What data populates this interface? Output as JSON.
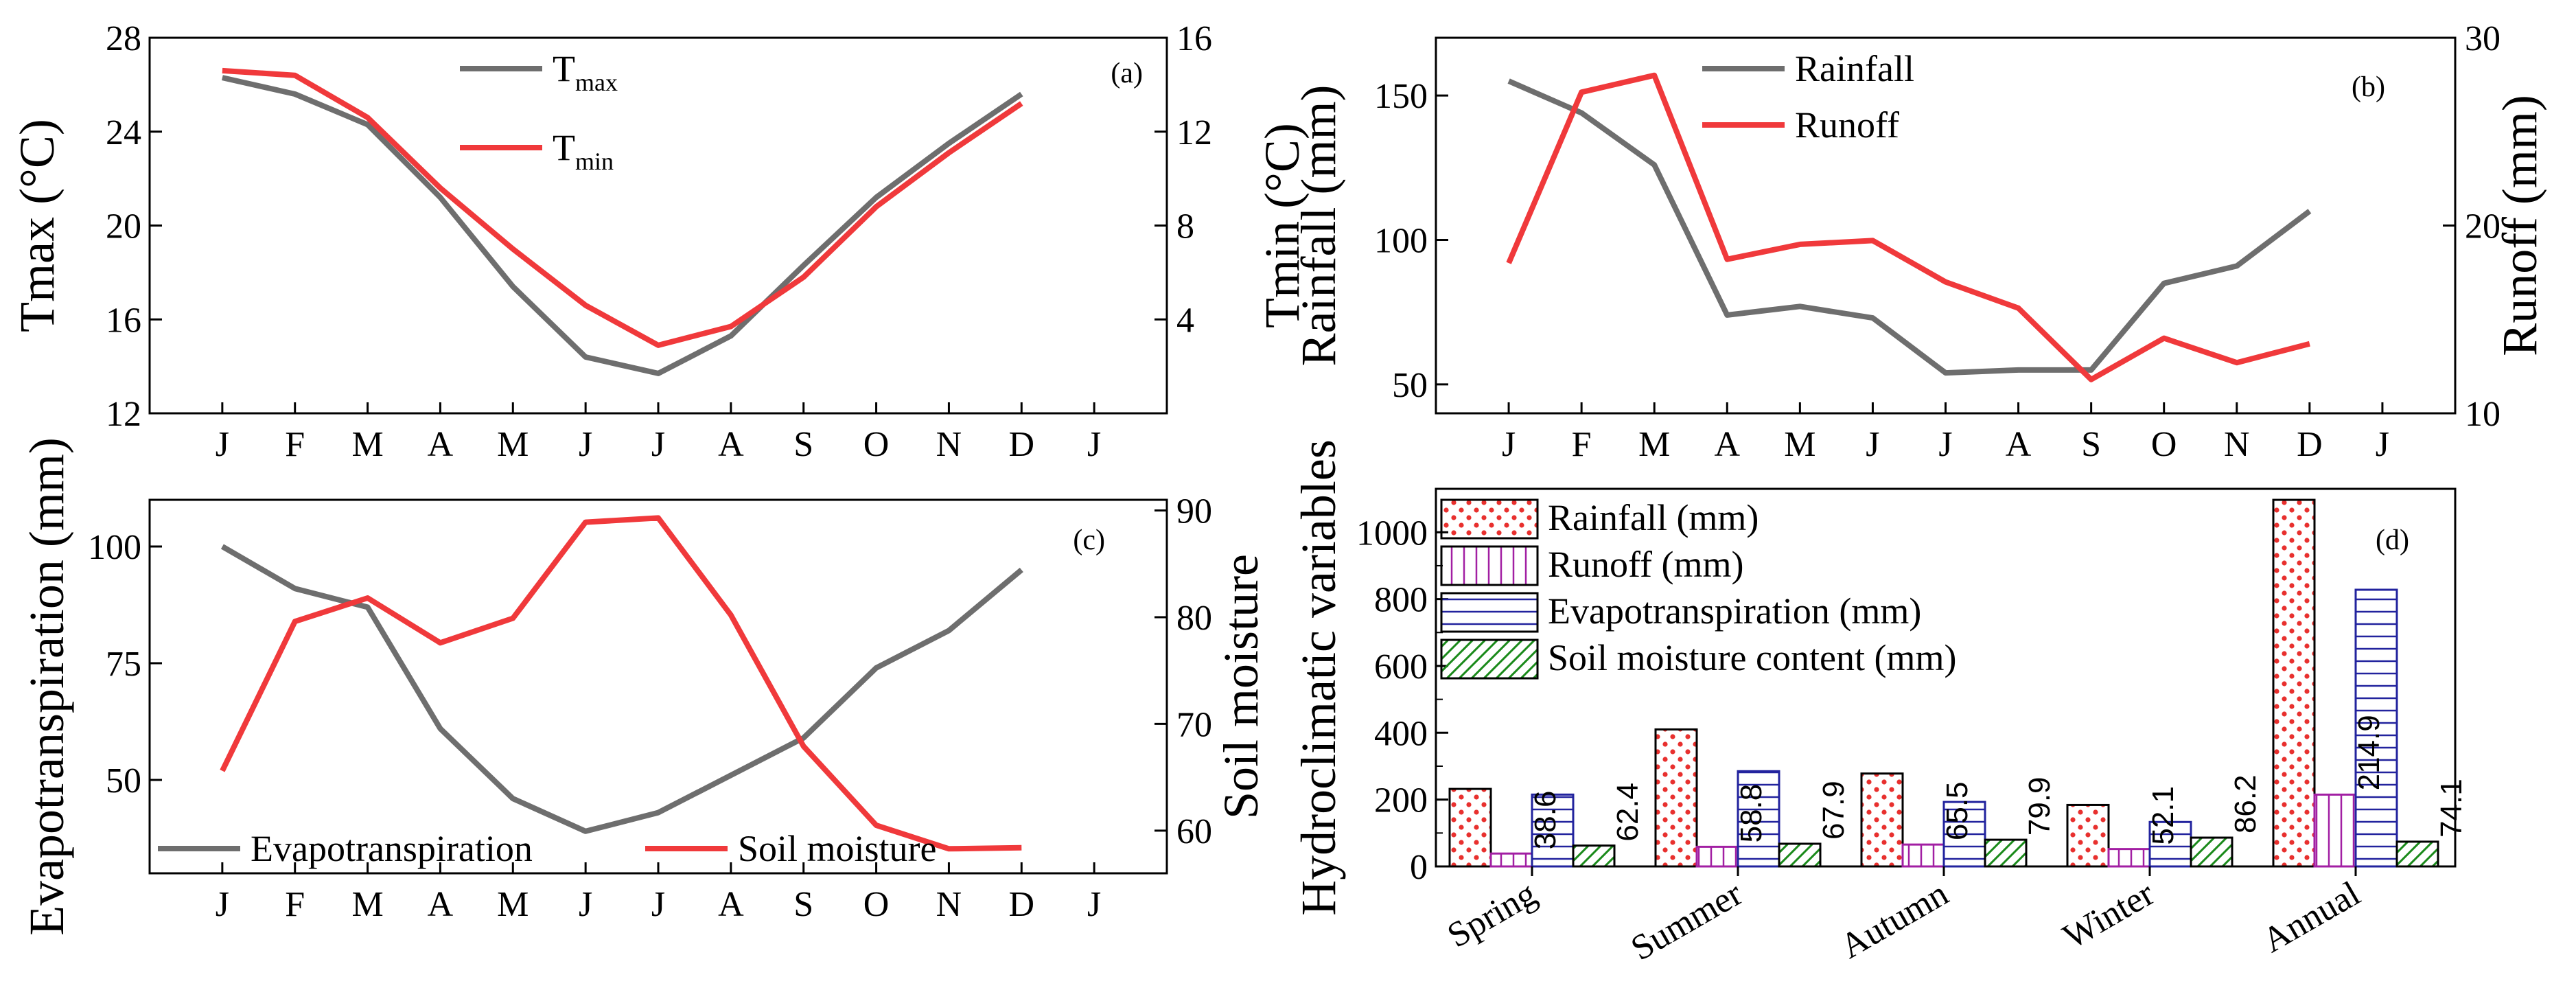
{
  "colors": {
    "tmax": "#6e6e6e",
    "tmin": "#f0393b",
    "rain": "#6e6e6e",
    "runoff": "#f0393b",
    "et": "#6e6e6e",
    "soil": "#f0393b",
    "bar_red": "#e8302e",
    "bar_purple": "#a21fa3",
    "bar_blue": "#22239e",
    "bar_green": "#1a8a1a"
  },
  "chart_data": [
    {
      "id": "a",
      "type": "line",
      "panel_label": "(a)",
      "x_ticks": [
        "J",
        "F",
        "M",
        "A",
        "M",
        "J",
        "J",
        "A",
        "S",
        "O",
        "N",
        "D",
        "J"
      ],
      "left_axis": {
        "label": "Tmax (°C)",
        "range": [
          12,
          28
        ],
        "ticks": [
          12,
          16,
          20,
          24,
          28
        ],
        "tick_labels": [
          "12",
          "16",
          "20",
          "24",
          "28"
        ]
      },
      "right_axis": {
        "label": "Tmin (°C)",
        "range": [
          0,
          16
        ],
        "ticks": [
          4,
          8,
          12,
          16
        ],
        "tick_labels": [
          "4",
          "8",
          "12",
          "16"
        ]
      },
      "legend": [
        {
          "text": "T",
          "sub": "max"
        },
        {
          "text": "T",
          "sub": "min"
        }
      ],
      "series": [
        {
          "name": "Tmax",
          "axis": "left",
          "values": [
            26.3,
            25.6,
            24.3,
            21.2,
            17.4,
            14.4,
            13.7,
            15.3,
            18.3,
            21.2,
            23.5,
            25.6
          ]
        },
        {
          "name": "Tmin",
          "axis": "right",
          "values": [
            14.6,
            14.4,
            12.6,
            9.6,
            7.0,
            4.6,
            2.9,
            3.7,
            5.8,
            8.8,
            11.1,
            13.2
          ]
        }
      ]
    },
    {
      "id": "b",
      "type": "line",
      "panel_label": "(b)",
      "x_ticks": [
        "J",
        "F",
        "M",
        "A",
        "M",
        "J",
        "J",
        "A",
        "S",
        "O",
        "N",
        "D",
        "J"
      ],
      "left_axis": {
        "label": "Rainfall (mm)",
        "range": [
          40,
          170
        ],
        "ticks": [
          50,
          100,
          150
        ],
        "tick_labels": [
          "50",
          "100",
          "150"
        ]
      },
      "right_axis": {
        "label": "Runoff (mm)",
        "range": [
          10,
          30
        ],
        "ticks": [
          10,
          20,
          30
        ],
        "tick_labels": [
          "10",
          "20",
          "30"
        ]
      },
      "legend": [
        {
          "text": "Rainfall",
          "sub": ""
        },
        {
          "text": "Runoff",
          "sub": ""
        }
      ],
      "series": [
        {
          "name": "Rainfall",
          "axis": "left",
          "values": [
            155,
            144,
            126,
            74,
            77,
            73,
            54,
            55,
            55,
            85,
            91,
            110
          ]
        },
        {
          "name": "Runoff",
          "axis": "right",
          "values": [
            18.0,
            27.1,
            28.0,
            18.2,
            19.0,
            19.2,
            17.0,
            15.6,
            11.8,
            14.0,
            12.7,
            13.7
          ]
        }
      ]
    },
    {
      "id": "c",
      "type": "line",
      "panel_label": "(c)",
      "x_ticks": [
        "J",
        "F",
        "M",
        "A",
        "M",
        "J",
        "J",
        "A",
        "S",
        "O",
        "N",
        "D",
        "J"
      ],
      "left_axis": {
        "label": "Evapotranspiration (mm)",
        "range": [
          30,
          110
        ],
        "ticks": [
          50,
          75,
          100
        ],
        "tick_labels": [
          "50",
          "75",
          "100"
        ]
      },
      "right_axis": {
        "label": "Soil moisture",
        "range": [
          56,
          91
        ],
        "ticks": [
          60,
          70,
          80,
          90
        ],
        "tick_labels": [
          "60",
          "70",
          "80",
          "90"
        ]
      },
      "legend": [
        {
          "text": "Evapotranspiration",
          "sub": ""
        },
        {
          "text": "Soil moisture",
          "sub": ""
        }
      ],
      "series": [
        {
          "name": "Evapotranspiration",
          "axis": "left",
          "values": [
            100,
            91,
            87,
            61,
            46,
            39,
            43,
            51,
            59,
            74,
            82,
            95
          ]
        },
        {
          "name": "Soil moisture",
          "axis": "right",
          "values": [
            65.6,
            79.6,
            81.8,
            77.6,
            79.9,
            88.9,
            89.3,
            80.2,
            67.9,
            60.5,
            58.3,
            58.4
          ]
        }
      ]
    },
    {
      "id": "d",
      "type": "bar",
      "panel_label": "(d)",
      "ylabel": "Hydroclimatic variables",
      "ylim": [
        0,
        1130
      ],
      "y_ticks": [
        0,
        200,
        400,
        600,
        800,
        1000
      ],
      "y_tick_labels": [
        "0",
        "200",
        "400",
        "600",
        "800",
        "1000"
      ],
      "categories": [
        "Spring",
        "Summer",
        "Autumn",
        "Winter",
        "Annual"
      ],
      "series": [
        {
          "name": "Rainfall (mm)",
          "values": [
            232,
            410,
            278,
            184,
            1097
          ]
        },
        {
          "name": "Runoff (mm)",
          "values": [
            38.6,
            58.8,
            65.5,
            52.1,
            214.9
          ]
        },
        {
          "name": "Evapotranspiration (mm)",
          "values": [
            215,
            285,
            193,
            133,
            828
          ]
        },
        {
          "name": "Soil moisture content (mm)",
          "values": [
            62.4,
            67.9,
            79.9,
            86.2,
            74.1
          ]
        }
      ],
      "data_labels": [
        {
          "category": 0,
          "text": "38.6"
        },
        {
          "category": 0,
          "text": "62.4"
        },
        {
          "category": 1,
          "text": "58.8"
        },
        {
          "category": 1,
          "text": "67.9"
        },
        {
          "category": 2,
          "text": "65.5"
        },
        {
          "category": 2,
          "text": "79.9"
        },
        {
          "category": 3,
          "text": "52.1"
        },
        {
          "category": 3,
          "text": "86.2"
        },
        {
          "category": 4,
          "text": "214.9"
        },
        {
          "category": 4,
          "text": "74.1"
        }
      ]
    }
  ]
}
